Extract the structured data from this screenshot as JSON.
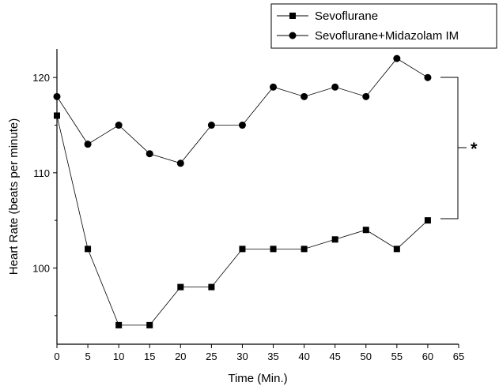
{
  "chart_data": {
    "type": "line",
    "xlabel": "Time (Min.)",
    "ylabel": "Heart Rate (beats per minute)",
    "xlim": [
      0,
      65
    ],
    "ylim": [
      92,
      123
    ],
    "xticks": [
      0,
      5,
      10,
      15,
      20,
      25,
      30,
      35,
      40,
      45,
      50,
      55,
      60,
      65
    ],
    "yticks": [
      100,
      110,
      120
    ],
    "x": [
      0,
      5,
      10,
      15,
      20,
      25,
      30,
      35,
      40,
      45,
      50,
      55,
      60
    ],
    "series": [
      {
        "name": "Sevoflurane",
        "marker": "square",
        "values": [
          116,
          102,
          94,
          94,
          98,
          98,
          102,
          102,
          102,
          103,
          104,
          102,
          105
        ]
      },
      {
        "name": "Sevoflurane+Midazolam IM",
        "marker": "circle",
        "values": [
          118,
          113,
          115,
          112,
          111,
          115,
          115,
          119,
          118,
          119,
          118,
          122,
          120
        ]
      }
    ],
    "legend_position": "top-right",
    "annotation": "*",
    "grid": false
  }
}
